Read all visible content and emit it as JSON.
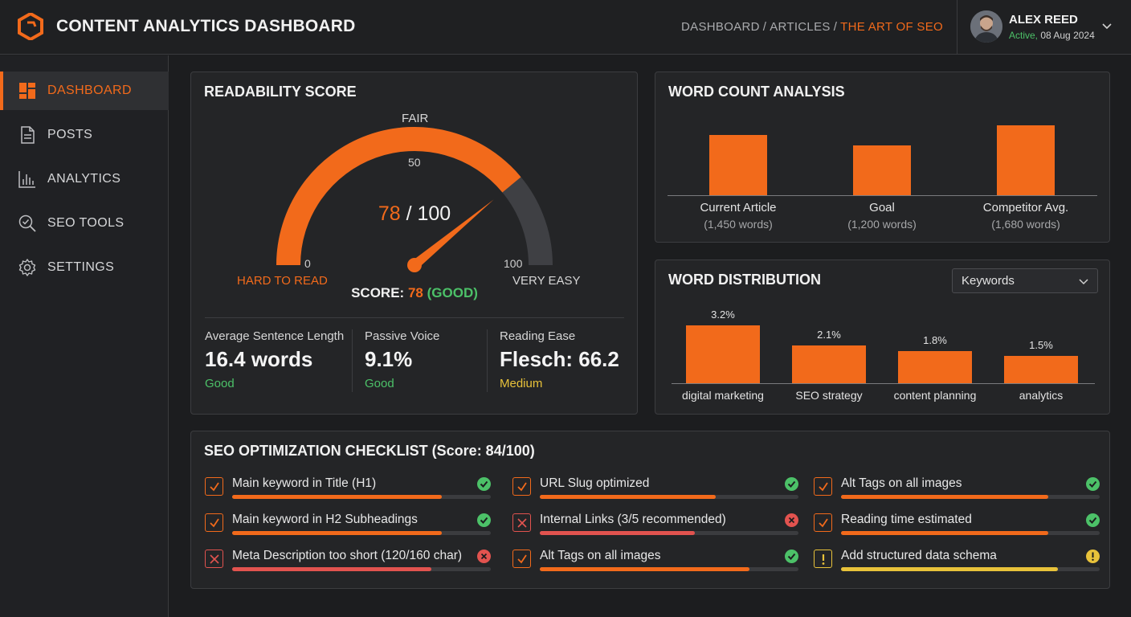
{
  "header": {
    "title": "CONTENT ANALYTICS DASHBOARD",
    "breadcrumb": [
      "DASHBOARD",
      "ARTICLES",
      "THE ART OF SEO"
    ],
    "breadcrumb_separator": "/",
    "user": {
      "name": "ALEX REED",
      "status": "Active,",
      "date": "08 Aug 2024"
    }
  },
  "sidebar": {
    "items": [
      {
        "label": "DASHBOARD",
        "icon": "dashboard-icon",
        "active": true
      },
      {
        "label": "POSTS",
        "icon": "document-icon",
        "active": false
      },
      {
        "label": "ANALYTICS",
        "icon": "bar-chart-icon",
        "active": false
      },
      {
        "label": "SEO TOOLS",
        "icon": "search-check-icon",
        "active": false
      },
      {
        "label": "SETTINGS",
        "icon": "gear-icon",
        "active": false
      }
    ]
  },
  "readability": {
    "title": "READABILITY SCORE",
    "gauge": {
      "value": 78,
      "max": 100,
      "value_text": "78",
      "max_text": "/ 100",
      "top_label": "FAIR",
      "mid_tick": "50",
      "min_tick": "0",
      "max_tick": "100",
      "left_label": "HARD TO READ",
      "right_label": "VERY EASY"
    },
    "score_line": {
      "prefix": "SCORE:",
      "value": "78",
      "grade": "(GOOD)"
    },
    "metrics": [
      {
        "label": "Average Sentence Length",
        "value": "16.4 words",
        "status": "Good"
      },
      {
        "label": "Passive Voice",
        "value": "9.1%",
        "status": "Good"
      },
      {
        "label": "Reading Ease",
        "value": "Flesch: 66.2",
        "status": "Medium"
      }
    ]
  },
  "word_count": {
    "title": "WORD COUNT ANALYSIS",
    "chart_data": {
      "type": "bar",
      "categories": [
        "Current Article",
        "Goal",
        "Competitor Avg."
      ],
      "values": [
        1450,
        1200,
        1680
      ],
      "sublabels": [
        "(1,450 words)",
        "(1,200 words)",
        "(1,680 words)"
      ]
    }
  },
  "word_distribution": {
    "title": "WORD DISTRIBUTION",
    "dropdown": "Keywords",
    "chart_data": {
      "type": "bar",
      "categories": [
        "digital marketing",
        "SEO strategy",
        "content planning",
        "analytics"
      ],
      "values": [
        3.2,
        2.1,
        1.8,
        1.5
      ],
      "value_labels": [
        "3.2%",
        "2.1%",
        "1.8%",
        "1.5%"
      ]
    }
  },
  "checklist": {
    "title": "SEO OPTIMIZATION CHECKLIST (Score: 84/100)",
    "items": [
      {
        "label": "Main keyword in Title (H1)",
        "state": "checked",
        "status": "ok",
        "progress": 0.81
      },
      {
        "label": "URL Slug optimized",
        "state": "checked",
        "status": "ok",
        "progress": 0.68
      },
      {
        "label": "Alt Tags on all images",
        "state": "checked",
        "status": "ok",
        "progress": 0.8
      },
      {
        "label": "Main keyword in H2 Subheadings",
        "state": "checked",
        "status": "ok",
        "progress": 0.81
      },
      {
        "label": "Internal Links (3/5 recommended)",
        "state": "failed",
        "status": "bad",
        "progress": 0.6
      },
      {
        "label": "Reading time estimated",
        "state": "checked",
        "status": "ok",
        "progress": 0.8
      },
      {
        "label": "Meta Description too short (120/160 char)",
        "state": "failed",
        "status": "bad",
        "progress": 0.77
      },
      {
        "label": "Alt Tags on all images",
        "state": "checked",
        "status": "ok",
        "progress": 0.81
      },
      {
        "label": "Add structured data schema",
        "state": "warning",
        "status": "warn",
        "progress": 0.84
      }
    ]
  },
  "colors": {
    "accent": "#f26a1b",
    "good": "#4cc168",
    "bad": "#e2534f",
    "warn": "#e8c23a",
    "background": "#1c1d1f",
    "panel": "#242527"
  }
}
